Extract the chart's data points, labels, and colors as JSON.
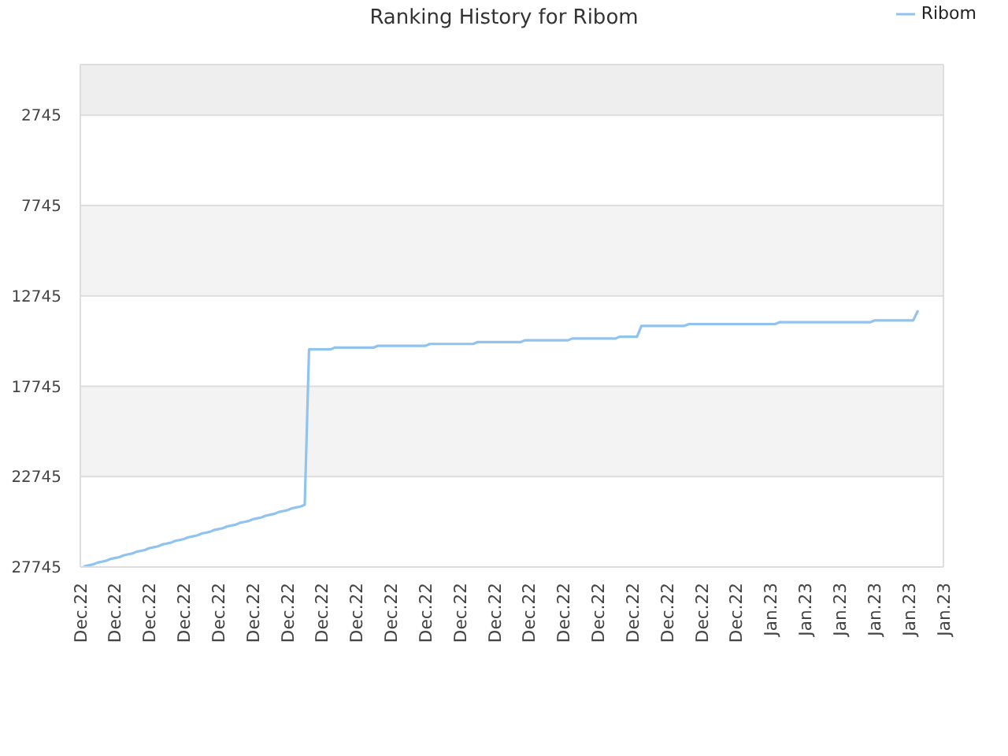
{
  "chart_data": {
    "type": "line",
    "title": "Ranking History for Ribom",
    "categories": [
      "Dec.22",
      null,
      null,
      null,
      null,
      null,
      null,
      null,
      "Dec.22",
      null,
      null,
      null,
      null,
      null,
      null,
      null,
      "Dec.22",
      null,
      null,
      null,
      null,
      null,
      null,
      null,
      "Dec.22",
      null,
      null,
      null,
      null,
      null,
      null,
      null,
      "Dec.22",
      null,
      null,
      null,
      null,
      null,
      null,
      null,
      "Dec.22",
      null,
      null,
      null,
      null,
      null,
      null,
      null,
      "Dec.22",
      null,
      null,
      null,
      null,
      null,
      null,
      null,
      "Dec.22",
      null,
      null,
      null,
      null,
      null,
      null,
      null,
      "Dec.22",
      null,
      null,
      null,
      null,
      null,
      null,
      null,
      "Dec.22",
      null,
      null,
      null,
      null,
      null,
      null,
      null,
      "Dec.22",
      null,
      null,
      null,
      null,
      null,
      null,
      null,
      "Dec.22",
      null,
      null,
      null,
      null,
      null,
      null,
      null,
      "Dec.22",
      null,
      null,
      null,
      null,
      null,
      null,
      null,
      "Dec.22",
      null,
      null,
      null,
      null,
      null,
      null,
      null,
      "Dec.22",
      null,
      null,
      null,
      null,
      null,
      null,
      null,
      "Dec.22",
      null,
      null,
      null,
      null,
      null,
      null,
      null,
      "Dec.22",
      null,
      null,
      null,
      null,
      null,
      null,
      null,
      "Dec.22",
      null,
      null,
      null,
      null,
      null,
      null,
      null,
      "Dec.22",
      null,
      null,
      null,
      null,
      null,
      null,
      null,
      "Dec.22",
      null,
      null,
      null,
      null,
      null,
      null,
      null,
      "Jan.23",
      null,
      null,
      null,
      null,
      null,
      null,
      null,
      "Jan.23",
      null,
      null,
      null,
      null,
      null,
      null,
      null,
      "Jan.23",
      null,
      null,
      null,
      null,
      null,
      null,
      null,
      "Jan.23",
      null,
      null,
      null,
      null,
      null,
      null,
      null,
      "Jan.23",
      null,
      null,
      null,
      null,
      null,
      null,
      null,
      "Jan.23"
    ],
    "series": [
      {
        "name": "Ribom",
        "color": "#90c3f0",
        "values": [
          null,
          27700,
          27650,
          27600,
          27500,
          27450,
          27400,
          27300,
          27250,
          27200,
          27100,
          27050,
          27000,
          26900,
          26850,
          26800,
          26700,
          26650,
          26600,
          26500,
          26450,
          26400,
          26300,
          26250,
          26200,
          26100,
          26050,
          26000,
          25900,
          25850,
          25800,
          25700,
          25650,
          25600,
          25500,
          25450,
          25400,
          25300,
          25250,
          25200,
          25100,
          25050,
          25000,
          24900,
          24850,
          24800,
          24700,
          24650,
          24600,
          24500,
          24450,
          24400,
          24300,
          15700,
          15700,
          15700,
          15700,
          15700,
          15700,
          15600,
          15600,
          15600,
          15600,
          15600,
          15600,
          15600,
          15600,
          15600,
          15600,
          15500,
          15500,
          15500,
          15500,
          15500,
          15500,
          15500,
          15500,
          15500,
          15500,
          15500,
          15500,
          15400,
          15400,
          15400,
          15400,
          15400,
          15400,
          15400,
          15400,
          15400,
          15400,
          15400,
          15300,
          15300,
          15300,
          15300,
          15300,
          15300,
          15300,
          15300,
          15300,
          15300,
          15300,
          15200,
          15200,
          15200,
          15200,
          15200,
          15200,
          15200,
          15200,
          15200,
          15200,
          15200,
          15100,
          15100,
          15100,
          15100,
          15100,
          15100,
          15100,
          15100,
          15100,
          15100,
          15100,
          15000,
          15000,
          15000,
          15000,
          15000,
          14400,
          14400,
          14400,
          14400,
          14400,
          14400,
          14400,
          14400,
          14400,
          14400,
          14400,
          14300,
          14300,
          14300,
          14300,
          14300,
          14300,
          14300,
          14300,
          14300,
          14300,
          14300,
          14300,
          14300,
          14300,
          14300,
          14300,
          14300,
          14300,
          14300,
          14300,
          14300,
          14200,
          14200,
          14200,
          14200,
          14200,
          14200,
          14200,
          14200,
          14200,
          14200,
          14200,
          14200,
          14200,
          14200,
          14200,
          14200,
          14200,
          14200,
          14200,
          14200,
          14200,
          14200,
          14100,
          14100,
          14100,
          14100,
          14100,
          14100,
          14100,
          14100,
          14100,
          14100,
          13600,
          null,
          null,
          null,
          null,
          null,
          null
        ]
      }
    ],
    "ylim": [
      27745,
      -60
    ],
    "yticks": [
      2745,
      7745,
      12745,
      17745,
      22745,
      27745
    ],
    "grid": "y",
    "legend": "top right",
    "marker": "none",
    "line_style": "solid",
    "bands": [
      {
        "axis": "y",
        "from": -60,
        "to": 2745,
        "color": "#eeeeee"
      },
      {
        "axis": "y",
        "from": 7745,
        "to": 12745,
        "color": "#f3f3f3"
      },
      {
        "axis": "y",
        "from": 17745,
        "to": 22745,
        "color": "#f3f3f3"
      }
    ]
  }
}
